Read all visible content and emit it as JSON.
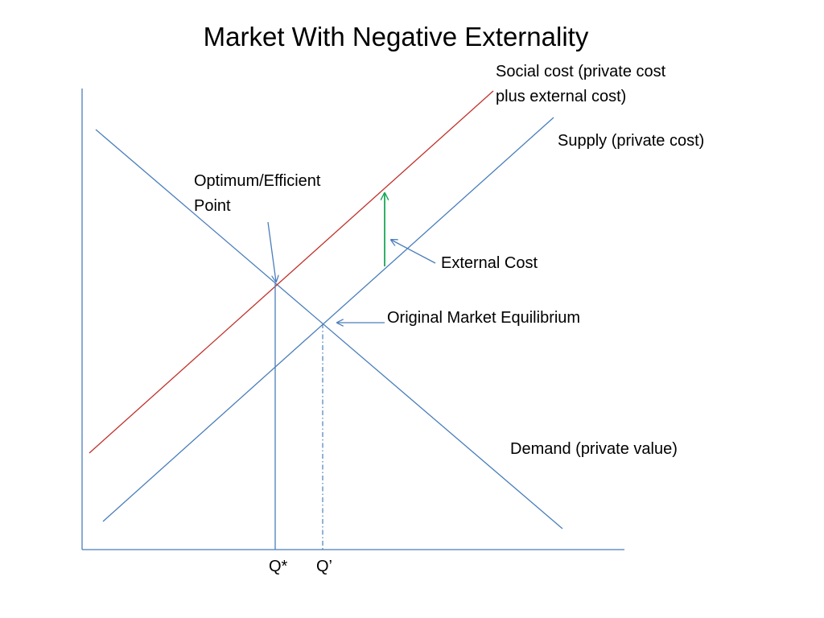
{
  "title": "Market With Negative Externality",
  "labels": {
    "social_cost_line1": "Social cost (private cost",
    "social_cost_line2": "plus external cost)",
    "supply": "Supply (private cost)",
    "optimum_line1": "Optimum/Efficient",
    "optimum_line2": "Point",
    "external_cost": "External Cost",
    "original_equilibrium": "Original Market Equilibrium",
    "demand": "Demand (private value)",
    "q_star": "Q*",
    "q_prime": "Q’"
  },
  "colors": {
    "axis": "#4a7ebb",
    "demand": "#4a7ebb",
    "supply": "#4a7ebb",
    "social_cost": "#c0312b",
    "external_cost_arrow": "#1aa85a",
    "pointer": "#4a7ebb",
    "text": "#000000"
  }
}
